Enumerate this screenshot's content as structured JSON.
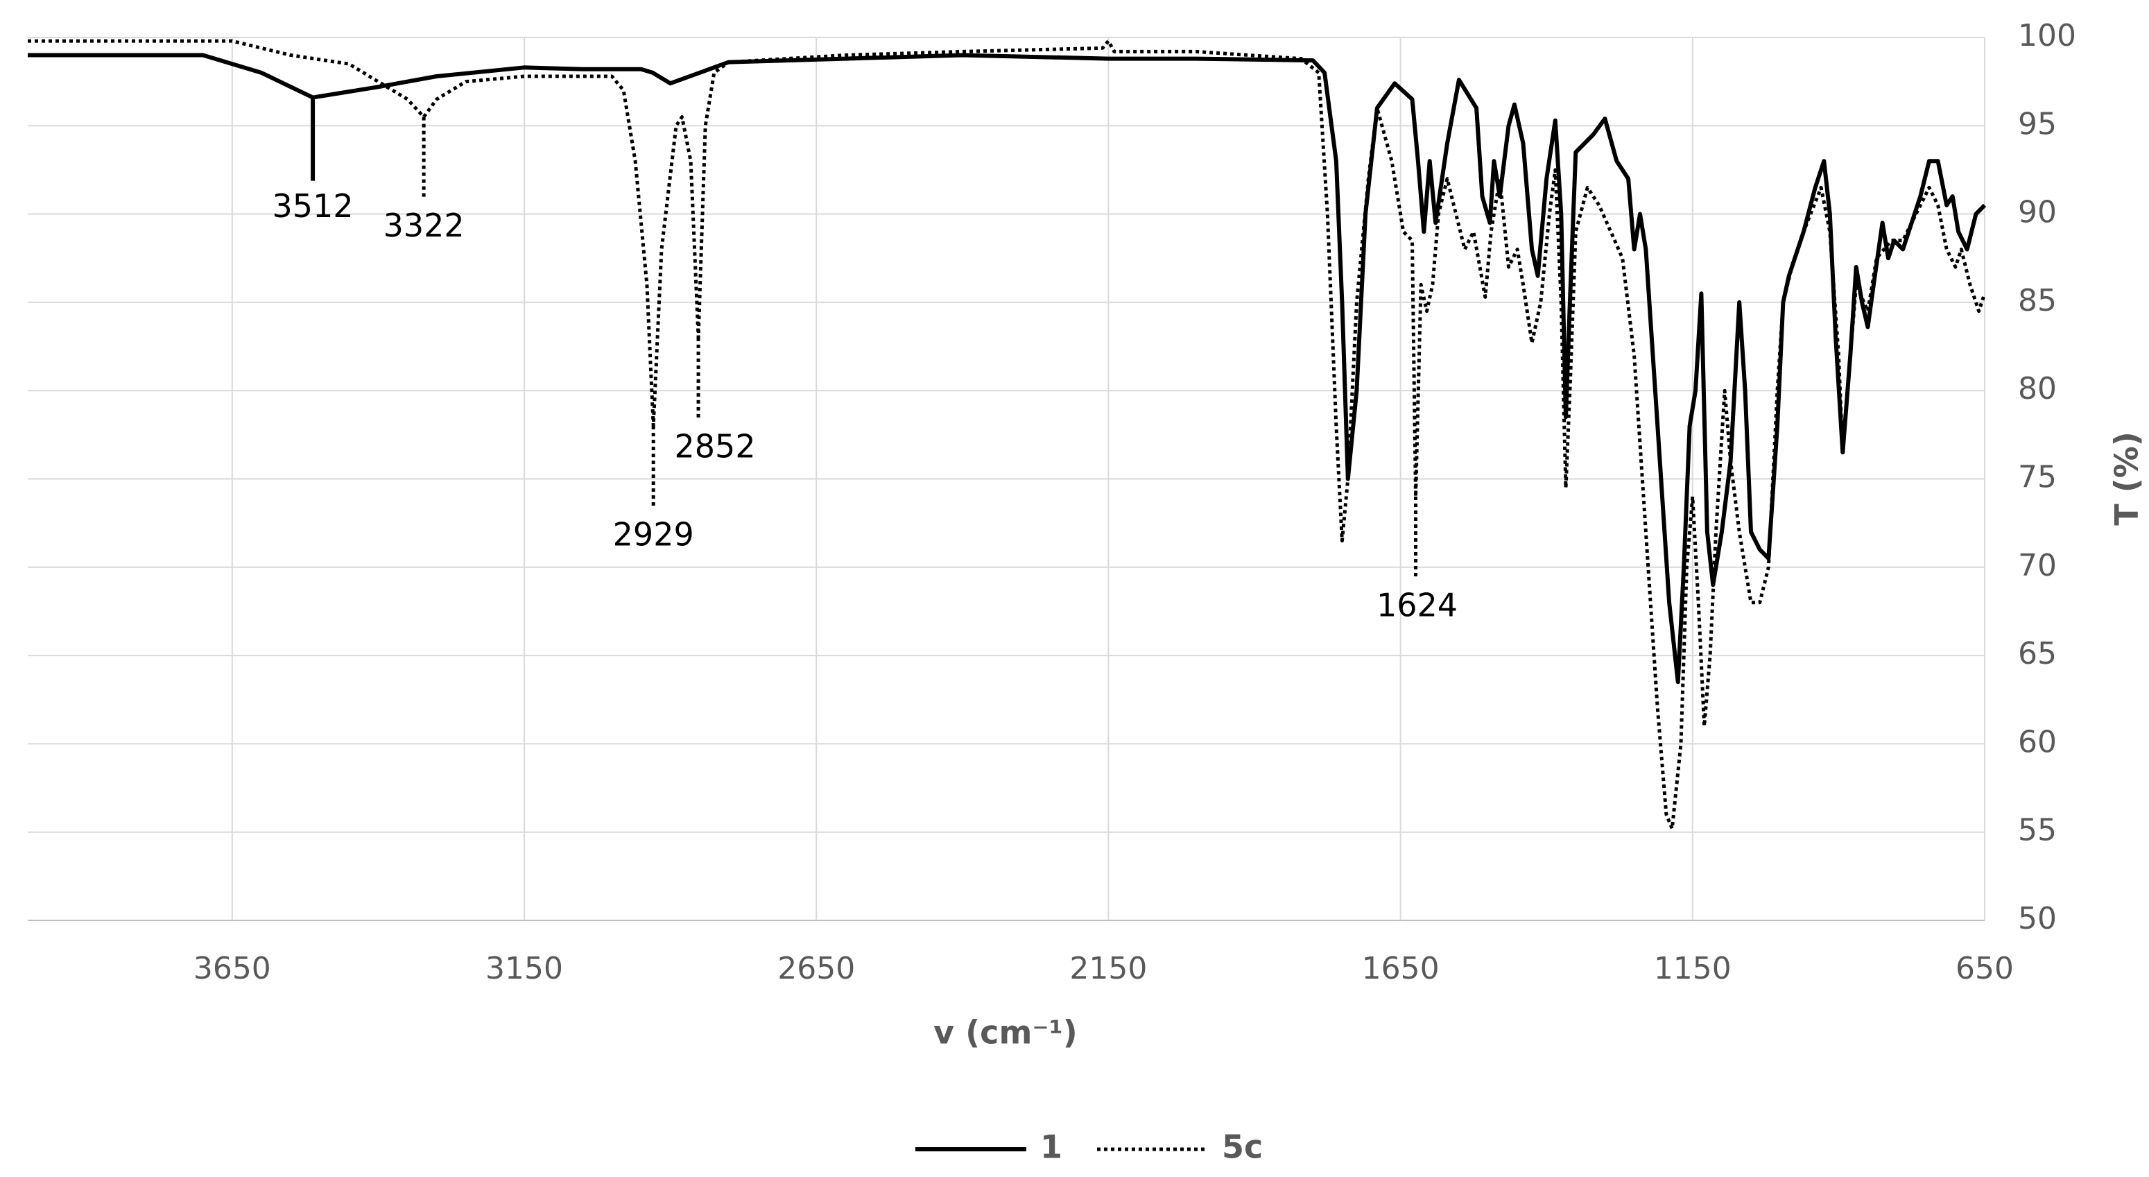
{
  "chart_data": {
    "type": "line",
    "x_label": "v (cm⁻¹)",
    "y_label": "T (%)",
    "xlim": [
      4000,
      650
    ],
    "xticks": [
      3650,
      3150,
      2650,
      2150,
      1650,
      1150,
      650
    ],
    "ylim": [
      50,
      100
    ],
    "yticks": [
      50,
      55,
      60,
      65,
      70,
      75,
      80,
      85,
      90,
      95,
      100
    ],
    "grid": true,
    "y_axis_side": "right",
    "legend": "bottom",
    "series": [
      {
        "name": "1",
        "color": "#000000",
        "dash": false,
        "x": [
          4000,
          3700,
          3600,
          3512,
          3400,
          3300,
          3150,
          3050,
          2950,
          2930,
          2900,
          2850,
          2800,
          2600,
          2400,
          2150,
          2000,
          1800,
          1780,
          1760,
          1750,
          1740,
          1725,
          1710,
          1690,
          1660,
          1630,
          1620,
          1610,
          1600,
          1590,
          1570,
          1550,
          1520,
          1510,
          1497,
          1490,
          1480,
          1465,
          1455,
          1440,
          1425,
          1415,
          1400,
          1385,
          1375,
          1367,
          1360,
          1350,
          1320,
          1300,
          1280,
          1260,
          1250,
          1240,
          1230,
          1210,
          1190,
          1175,
          1165,
          1155,
          1145,
          1135,
          1125,
          1115,
          1100,
          1085,
          1070,
          1060,
          1050,
          1035,
          1020,
          1005,
          995,
          985,
          960,
          940,
          925,
          915,
          905,
          893,
          880,
          870,
          860,
          850,
          840,
          825,
          815,
          805,
          790,
          775,
          760,
          745,
          730,
          715,
          705,
          695,
          680,
          665,
          650
        ],
        "values": [
          99.0,
          99.0,
          98.0,
          96.6,
          97.2,
          97.8,
          98.3,
          98.2,
          98.2,
          98.0,
          97.4,
          98.0,
          98.6,
          98.8,
          99.0,
          98.8,
          98.8,
          98.7,
          98.0,
          93,
          85,
          75,
          80,
          90,
          96,
          97.4,
          96.5,
          93,
          89,
          93,
          89.5,
          94,
          97.6,
          96,
          91,
          89.5,
          93,
          91,
          95,
          96.2,
          94,
          88,
          86.5,
          92,
          95.3,
          90,
          78.5,
          85,
          93.5,
          94.5,
          95.4,
          93,
          92,
          88,
          90,
          88,
          78,
          68,
          63.5,
          70,
          78,
          80,
          85.5,
          72,
          69,
          72,
          76,
          85,
          80,
          72,
          71,
          70.5,
          78,
          85,
          86.5,
          89,
          91.5,
          93,
          90,
          83,
          76.5,
          82,
          87,
          85,
          83.6,
          86,
          89.5,
          87.5,
          88.5,
          88,
          89.5,
          91,
          93,
          93,
          90.5,
          91,
          89,
          88,
          90,
          90.5
        ]
      },
      {
        "name": "5c",
        "color": "#000000",
        "dash": true,
        "x": [
          4000,
          3650,
          3550,
          3450,
          3400,
          3350,
          3322,
          3300,
          3250,
          3150,
          3000,
          2980,
          2960,
          2940,
          2929,
          2915,
          2890,
          2880,
          2865,
          2852,
          2840,
          2825,
          2800,
          2600,
          2400,
          2160,
          2150,
          2140,
          2000,
          1820,
          1790,
          1775,
          1760,
          1750,
          1740,
          1725,
          1705,
          1690,
          1665,
          1645,
          1630,
          1624,
          1615,
          1605,
          1595,
          1585,
          1570,
          1555,
          1540,
          1525,
          1505,
          1495,
          1480,
          1465,
          1450,
          1440,
          1425,
          1410,
          1395,
          1385,
          1375,
          1367,
          1360,
          1350,
          1330,
          1310,
          1290,
          1270,
          1250,
          1230,
          1210,
          1195,
          1185,
          1170,
          1160,
          1150,
          1140,
          1130,
          1120,
          1110,
          1095,
          1085,
          1070,
          1050,
          1035,
          1020,
          1005,
          995,
          980,
          960,
          930,
          915,
          900,
          893,
          880,
          870,
          850,
          835,
          810,
          790,
          760,
          745,
          730,
          715,
          700,
          690,
          675,
          660,
          650
        ],
        "values": [
          99.8,
          99.8,
          99,
          98.5,
          97.5,
          96.5,
          95.5,
          96.5,
          97.5,
          97.8,
          97.8,
          97.0,
          93,
          86,
          78,
          88,
          95,
          95.5,
          93,
          83,
          95,
          98,
          98.6,
          99,
          99.2,
          99.4,
          99.8,
          99.2,
          99.2,
          98.8,
          98,
          90,
          78,
          71.5,
          75,
          85,
          92,
          96,
          93,
          89,
          88.5,
          74,
          86,
          84.5,
          86,
          90,
          92,
          90,
          88,
          89,
          85.3,
          89,
          92,
          87,
          88,
          86,
          82.7,
          85,
          90,
          92.5,
          85,
          74.5,
          80,
          89,
          91.5,
          90.5,
          89,
          87.5,
          82,
          72,
          62,
          56,
          55.2,
          60,
          70,
          74,
          68,
          61,
          65,
          72,
          80,
          76,
          72,
          68,
          68,
          70,
          80,
          85,
          87,
          89,
          91.5,
          89,
          82,
          76.5,
          82,
          86,
          84.5,
          87.5,
          88.5,
          88.5,
          90.5,
          91.5,
          90.5,
          88,
          87,
          88,
          86,
          84.5,
          85.5
        ]
      }
    ],
    "annotations": [
      {
        "x": 3512,
        "series": "1"
      },
      {
        "x": 3322,
        "series": "5c"
      },
      {
        "x": 2929,
        "series": "5c"
      },
      {
        "x": 2852,
        "series": "5c"
      },
      {
        "x": 1624,
        "series": "5c"
      }
    ]
  }
}
